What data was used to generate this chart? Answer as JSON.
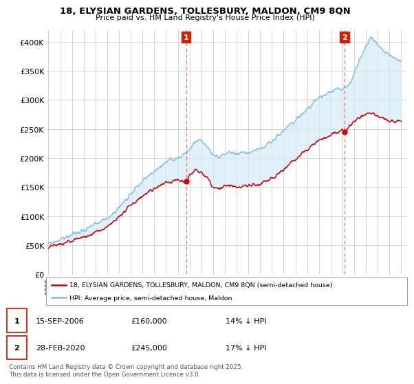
{
  "title_line1": "18, ELYSIAN GARDENS, TOLLESBURY, MALDON, CM9 8QN",
  "title_line2": "Price paid vs. HM Land Registry's House Price Index (HPI)",
  "ylabel_ticks": [
    "£0",
    "£50K",
    "£100K",
    "£150K",
    "£200K",
    "£250K",
    "£300K",
    "£350K",
    "£400K"
  ],
  "ytick_values": [
    0,
    50000,
    100000,
    150000,
    200000,
    250000,
    300000,
    350000,
    400000
  ],
  "ylim": [
    0,
    420000
  ],
  "xlim_start": 1994.8,
  "xlim_end": 2025.5,
  "x_ticks": [
    1995,
    1996,
    1997,
    1998,
    1999,
    2000,
    2001,
    2002,
    2003,
    2004,
    2005,
    2006,
    2007,
    2008,
    2009,
    2010,
    2011,
    2012,
    2013,
    2014,
    2015,
    2016,
    2017,
    2018,
    2019,
    2020,
    2021,
    2022,
    2023,
    2024,
    2025
  ],
  "hpi_color": "#7bbfdd",
  "hpi_fill_color": "#d6eaf8",
  "price_color": "#cc0000",
  "vline_color": "#ff6666",
  "annotation_box_color": "#cc2200",
  "background_color": "#ffffff",
  "grid_color": "#cccccc",
  "purchase1_x": 2006.71,
  "purchase1_y": 160000,
  "purchase1_label": "1",
  "purchase2_x": 2020.17,
  "purchase2_y": 245000,
  "purchase2_label": "2",
  "legend_line1": "18, ELYSIAN GARDENS, TOLLESBURY, MALDON, CM9 8QN (semi-detached house)",
  "legend_line2": "HPI: Average price, semi-detached house, Maldon",
  "table_row1_date": "15-SEP-2006",
  "table_row1_price": "£160,000",
  "table_row1_hpi": "14% ↓ HPI",
  "table_row2_date": "28-FEB-2020",
  "table_row2_price": "£245,000",
  "table_row2_hpi": "17% ↓ HPI",
  "footnote": "Contains HM Land Registry data © Crown copyright and database right 2025.\nThis data is licensed under the Open Government Licence v3.0."
}
